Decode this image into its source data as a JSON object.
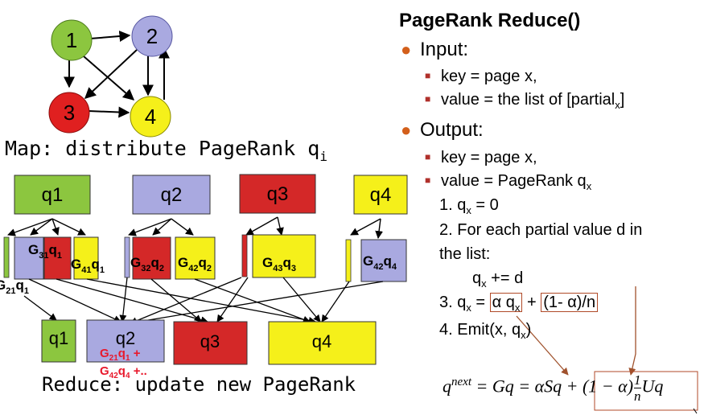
{
  "graph": {
    "nodes": [
      {
        "id": "node1",
        "label": "1",
        "color": "#8cc63f"
      },
      {
        "id": "node2",
        "label": "2",
        "color": "#a9a9e0"
      },
      {
        "id": "node3",
        "label": "3",
        "color": "#e02020"
      },
      {
        "id": "node4",
        "label": "4",
        "color": "#f5f01a"
      }
    ]
  },
  "map": {
    "title": "Map: distribute PageRank q",
    "title_sub": "i",
    "sources": [
      {
        "label": "q1",
        "color": "#8cc63f"
      },
      {
        "label": "q2",
        "color": "#a9a9e0"
      },
      {
        "label": "q3",
        "color": "#d42828"
      },
      {
        "label": "q4",
        "color": "#f5f01a"
      }
    ],
    "partials": {
      "g21_q1": [
        "G",
        "21",
        "q",
        "1"
      ],
      "g31_q1": [
        "G",
        "31",
        "q",
        "1"
      ],
      "g41_q1": [
        "G",
        "41",
        "q",
        "1"
      ],
      "g32_q2": [
        "G",
        "32",
        "q",
        "2"
      ],
      "g42_q2": [
        "G",
        "42",
        "q",
        "2"
      ],
      "g43_q3": [
        "G",
        "43",
        "q",
        "3"
      ],
      "g42_q4": [
        "G",
        "42",
        "q",
        "4"
      ]
    }
  },
  "reduce": {
    "title": "Reduce: update new PageRank",
    "outputs": [
      {
        "label": "q1",
        "color": "#8cc63f"
      },
      {
        "label": "q2",
        "color": "#a9a9e0"
      },
      {
        "label": "q3",
        "color": "#d42828"
      },
      {
        "label": "q4",
        "color": "#f5f01a"
      }
    ],
    "q2_sum_line1": [
      "G",
      "21",
      "q",
      "1",
      " +"
    ],
    "q2_sum_line2": [
      "G",
      "42",
      "q",
      "4",
      " +.."
    ],
    "sum_color": "#e8192c"
  },
  "text": {
    "title": "PageRank Reduce()",
    "input": "Input:",
    "input_key": "key = page x,",
    "input_value": "value = the list of [partial",
    "input_value_sub": "x",
    "input_value_end": "]",
    "output": "Output:",
    "output_key": "key = page x,",
    "output_value": "value = PageRank q",
    "output_value_sub": "x",
    "step1": [
      "1. q",
      "x",
      " = 0"
    ],
    "step2a": "2. For each partial value d in",
    "step2b": "the list:",
    "step2c": [
      "q",
      "x",
      " += d"
    ],
    "step3": [
      "3. q",
      "x",
      " = ",
      "α q",
      "x",
      " + ",
      "(1- α)/n"
    ],
    "step4": [
      "4. Emit(x, q",
      "x",
      ")"
    ],
    "formula": {
      "lhs": "q",
      "lhs_sup": "next",
      "mid": " = Gq = αSq + ",
      "boxed_a": "(1 − α)",
      "frac_num": "1",
      "frac_den": "n",
      "boxed_b": "Uq"
    }
  },
  "colors": {
    "bullet": "#d35f1b",
    "sub_bullet": "#b0302b",
    "box_outline": "#b04a28"
  }
}
